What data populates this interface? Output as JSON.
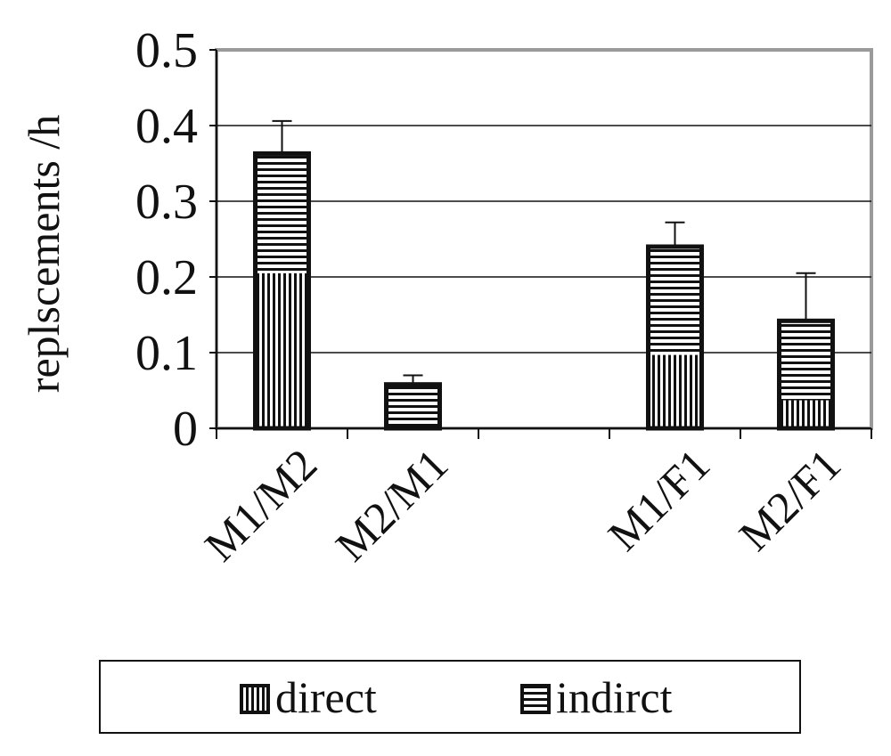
{
  "chart_data": {
    "type": "bar",
    "stacked": true,
    "title": "",
    "xlabel": "",
    "ylabel": "replscements /h",
    "ylim": [
      0,
      0.5
    ],
    "yticks": [
      "0",
      "0.1",
      "0.2",
      "0.3",
      "0.4",
      "0.5"
    ],
    "categories": [
      "M1/M2",
      "M2/M1",
      "",
      "M1/F1",
      "M2/F1"
    ],
    "series": [
      {
        "name": "direct",
        "values": [
          0.205,
          0,
          null,
          0.097,
          0.037
        ]
      },
      {
        "name": "indirct",
        "values": [
          0.158,
          0.058,
          null,
          0.143,
          0.105
        ]
      }
    ],
    "error_bars_upper": [
      0.043,
      0.012,
      null,
      0.032,
      0.063
    ],
    "grid": true,
    "legend_position": "bottom"
  }
}
